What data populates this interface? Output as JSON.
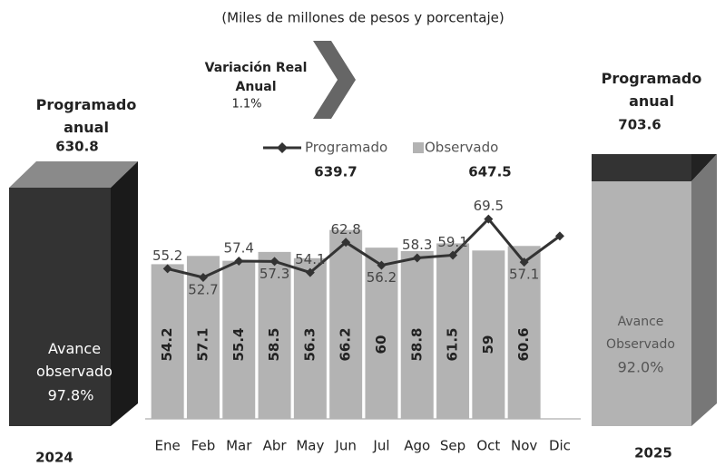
{
  "chart_data": {
    "type": "bar",
    "subtitle": "(Miles de millones de pesos y porcentaje)",
    "left_panel": {
      "title": "Programado anual",
      "value": "630.8",
      "label": "Avance observado",
      "percent": "97.8%",
      "year": "2024"
    },
    "right_panel": {
      "title": "Programado anual",
      "value": "703.6",
      "label": "Avance Observado",
      "percent": "92.0%",
      "year": "2025"
    },
    "variation": {
      "label": "Variación Real Anual",
      "value": "1.1%"
    },
    "totals": [
      "639.7",
      "647.5"
    ],
    "categories": [
      "Ene",
      "Feb",
      "Mar",
      "Abr",
      "May",
      "Jun",
      "Jul",
      "Ago",
      "Sep",
      "Oct",
      "Nov",
      "Dic"
    ],
    "series": [
      {
        "name": "Observado",
        "color": "#b3b3b3",
        "values": [
          54.2,
          57.1,
          55.4,
          58.5,
          56.3,
          66.2,
          60.0,
          58.8,
          61.5,
          59.0,
          60.6,
          null
        ]
      },
      {
        "name": "Programado",
        "color": "#333333",
        "axis": "y2",
        "values": [
          55.2,
          52.7,
          57.4,
          57.3,
          54.1,
          62.8,
          56.2,
          58.3,
          59.1,
          69.5,
          57.1,
          64.6
        ],
        "value_labels": [
          "55.2",
          "52.7",
          "57.4",
          "57.3",
          "54.1",
          "62.8",
          "56.2",
          "58.3",
          "59.1",
          "69.5",
          "57.1",
          null
        ]
      }
    ],
    "ylim": [
      0,
      95
    ],
    "y2lim": [
      12,
      90
    ]
  }
}
